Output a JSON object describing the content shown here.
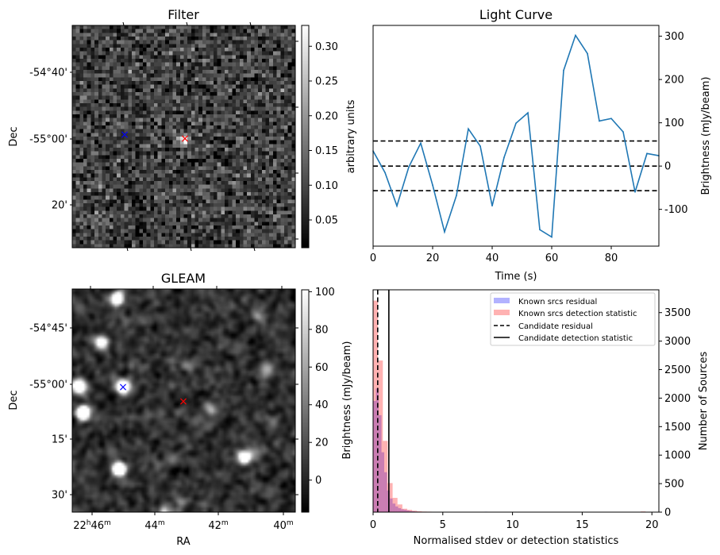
{
  "panels": {
    "filter": {
      "title": "Filter",
      "ylabel": "Dec",
      "dec_ticks": [
        "-54°40'",
        "-55°00'",
        "20'"
      ],
      "colorbar": {
        "label": "arbitrary units",
        "ticks": [
          "0.30",
          "0.25",
          "0.20",
          "0.15",
          "0.10",
          "0.05"
        ],
        "tick_values": [
          0.3,
          0.25,
          0.2,
          0.15,
          0.1,
          0.05
        ],
        "range": [
          0.01,
          0.33
        ],
        "cmap": "gray"
      }
    },
    "gleam": {
      "title": "GLEAM",
      "xlabel": "RA",
      "ylabel": "Dec",
      "dec_ticks": [
        "-54°45'",
        "-55°00'",
        "15'",
        "30'"
      ],
      "ra_ticks": [
        {
          "h": "22",
          "hs": "h",
          "m": "46",
          "ms": "m"
        },
        {
          "h": "",
          "hs": "",
          "m": "44",
          "ms": "m"
        },
        {
          "h": "",
          "hs": "",
          "m": "42",
          "ms": "m"
        },
        {
          "h": "",
          "hs": "",
          "m": "40",
          "ms": "m"
        }
      ],
      "colorbar": {
        "label": "Brightness (mJy/beam)",
        "ticks": [
          "100",
          "80",
          "60",
          "40",
          "20",
          "0"
        ],
        "tick_values": [
          100,
          80,
          60,
          40,
          20,
          0
        ],
        "range": [
          -17,
          101
        ],
        "cmap": "gray"
      }
    }
  },
  "markers": {
    "known_source_color": "#0000ff",
    "candidate_color": "#ff0000"
  },
  "chart_data": [
    {
      "type": "line",
      "title": "Light Curve",
      "xlabel": "Time (s)",
      "ylabel": "Brightness (mJy/beam)",
      "xlim": [
        0,
        96
      ],
      "ylim": [
        -185,
        325
      ],
      "xticks": [
        0,
        20,
        40,
        60,
        80
      ],
      "yticks": [
        -100,
        0,
        100,
        200,
        300
      ],
      "x": [
        0,
        4,
        8,
        12,
        16,
        20,
        24,
        28,
        32,
        36,
        40,
        44,
        48,
        52,
        56,
        60,
        64,
        68,
        72,
        76,
        80,
        84,
        88,
        92,
        96
      ],
      "series": [
        {
          "name": "light curve",
          "color": "#1f77b4",
          "values": [
            35,
            -15,
            -92,
            -2,
            53,
            -44,
            -152,
            -68,
            86,
            46,
            -92,
            20,
            99,
            123,
            -147,
            -164,
            221,
            302,
            260,
            104,
            110,
            79,
            -60,
            29,
            24
          ]
        }
      ],
      "hlines": [
        {
          "y": 58,
          "style": "dashed"
        },
        {
          "y": 0,
          "style": "dashed"
        },
        {
          "y": -57,
          "style": "dashed"
        }
      ]
    },
    {
      "type": "bar",
      "subtype": "histogram",
      "xlabel": "Normalised stdev or detection statistics",
      "ylabel": "Number of Sources",
      "xlim": [
        0,
        20.5
      ],
      "ylim": [
        0,
        3900
      ],
      "xticks": [
        0,
        5,
        10,
        15,
        20
      ],
      "yticks": [
        0,
        500,
        1000,
        1500,
        2000,
        2500,
        3000,
        3500
      ],
      "series": [
        {
          "name": "Known srcs residual",
          "color": "#0000ff",
          "alpha": 0.3,
          "bin_start": 0,
          "bin_width": 0.2,
          "values": [
            1950,
            2170,
            1700,
            1050,
            700,
            380,
            240,
            150,
            100,
            70,
            50,
            40,
            30,
            20,
            15,
            10,
            8,
            6,
            5,
            4,
            3,
            3,
            2,
            2,
            1
          ]
        },
        {
          "name": "Known srcs detection statistic",
          "color": "#ff0000",
          "alpha": 0.3,
          "bin_start": 0,
          "bin_width": 0.35,
          "values": [
            3710,
            2660,
            1250,
            510,
            250,
            135,
            60,
            40,
            25,
            15,
            10,
            8,
            6,
            5,
            4,
            3,
            2
          ]
        }
      ],
      "extra_bins": [
        {
          "series": 0,
          "x": 8.0,
          "width": 0.2,
          "value": 8
        },
        {
          "series": 1,
          "x": 19.2,
          "width": 0.35,
          "value": 12
        }
      ],
      "vlines": [
        {
          "name": "Candidate residual",
          "x": 0.33,
          "style": "dashed"
        },
        {
          "name": "Candidate detection statistic",
          "x": 1.13,
          "style": "solid"
        }
      ],
      "legend": {
        "position": "top-right",
        "entries": [
          "Known srcs residual",
          "Known srcs detection statistic",
          "Candidate residual",
          "Candidate detection statistic"
        ]
      }
    }
  ]
}
